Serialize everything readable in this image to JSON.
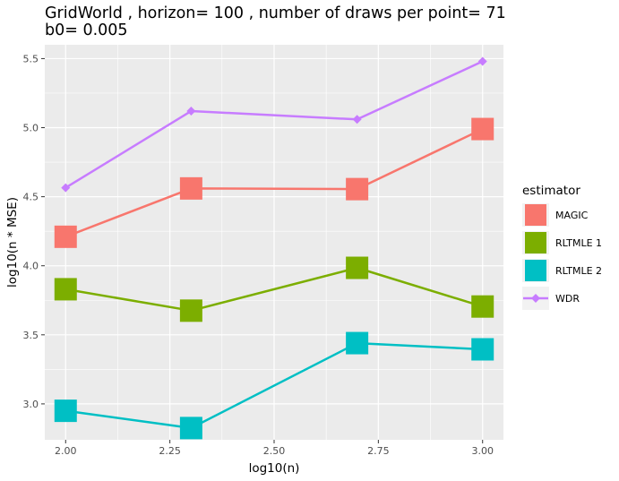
{
  "chart_data": {
    "type": "line",
    "title_lines": [
      "GridWorld , horizon= 100 , number of draws per point= 71",
      "b0= 0.005"
    ],
    "xlabel": "log10(n)",
    "ylabel": "log10(n * MSE)",
    "x": [
      2.0,
      2.301,
      2.699,
      3.0
    ],
    "xlim": [
      1.95,
      3.05
    ],
    "ylim": [
      2.74,
      5.6
    ],
    "x_ticks": [
      {
        "value": 2.0,
        "label": "2.00"
      },
      {
        "value": 2.25,
        "label": "2.25"
      },
      {
        "value": 2.5,
        "label": "2.50"
      },
      {
        "value": 2.75,
        "label": "2.75"
      },
      {
        "value": 3.0,
        "label": "3.00"
      }
    ],
    "y_ticks": [
      {
        "value": 3.0,
        "label": "3.0"
      },
      {
        "value": 3.5,
        "label": "3.5"
      },
      {
        "value": 4.0,
        "label": "4.0"
      },
      {
        "value": 4.5,
        "label": "4.5"
      },
      {
        "value": 5.0,
        "label": "5.0"
      },
      {
        "value": 5.5,
        "label": "5.5"
      }
    ],
    "grid": true,
    "legend_title": "estimator",
    "legend_position": "right",
    "series": [
      {
        "name": "MAGIC",
        "color": "#F8766D",
        "marker": "square",
        "values": [
          4.21,
          4.56,
          4.555,
          4.99
        ]
      },
      {
        "name": "RLTMLE 1",
        "color": "#7CAE00",
        "marker": "square",
        "values": [
          3.83,
          3.675,
          3.985,
          3.705
        ]
      },
      {
        "name": "RLTMLE 2",
        "color": "#00BFC4",
        "marker": "square",
        "values": [
          2.95,
          2.825,
          3.44,
          3.395
        ]
      },
      {
        "name": "WDR",
        "color": "#C77CFF",
        "marker": "diamond",
        "values": [
          4.565,
          5.12,
          5.06,
          5.48
        ]
      }
    ]
  }
}
